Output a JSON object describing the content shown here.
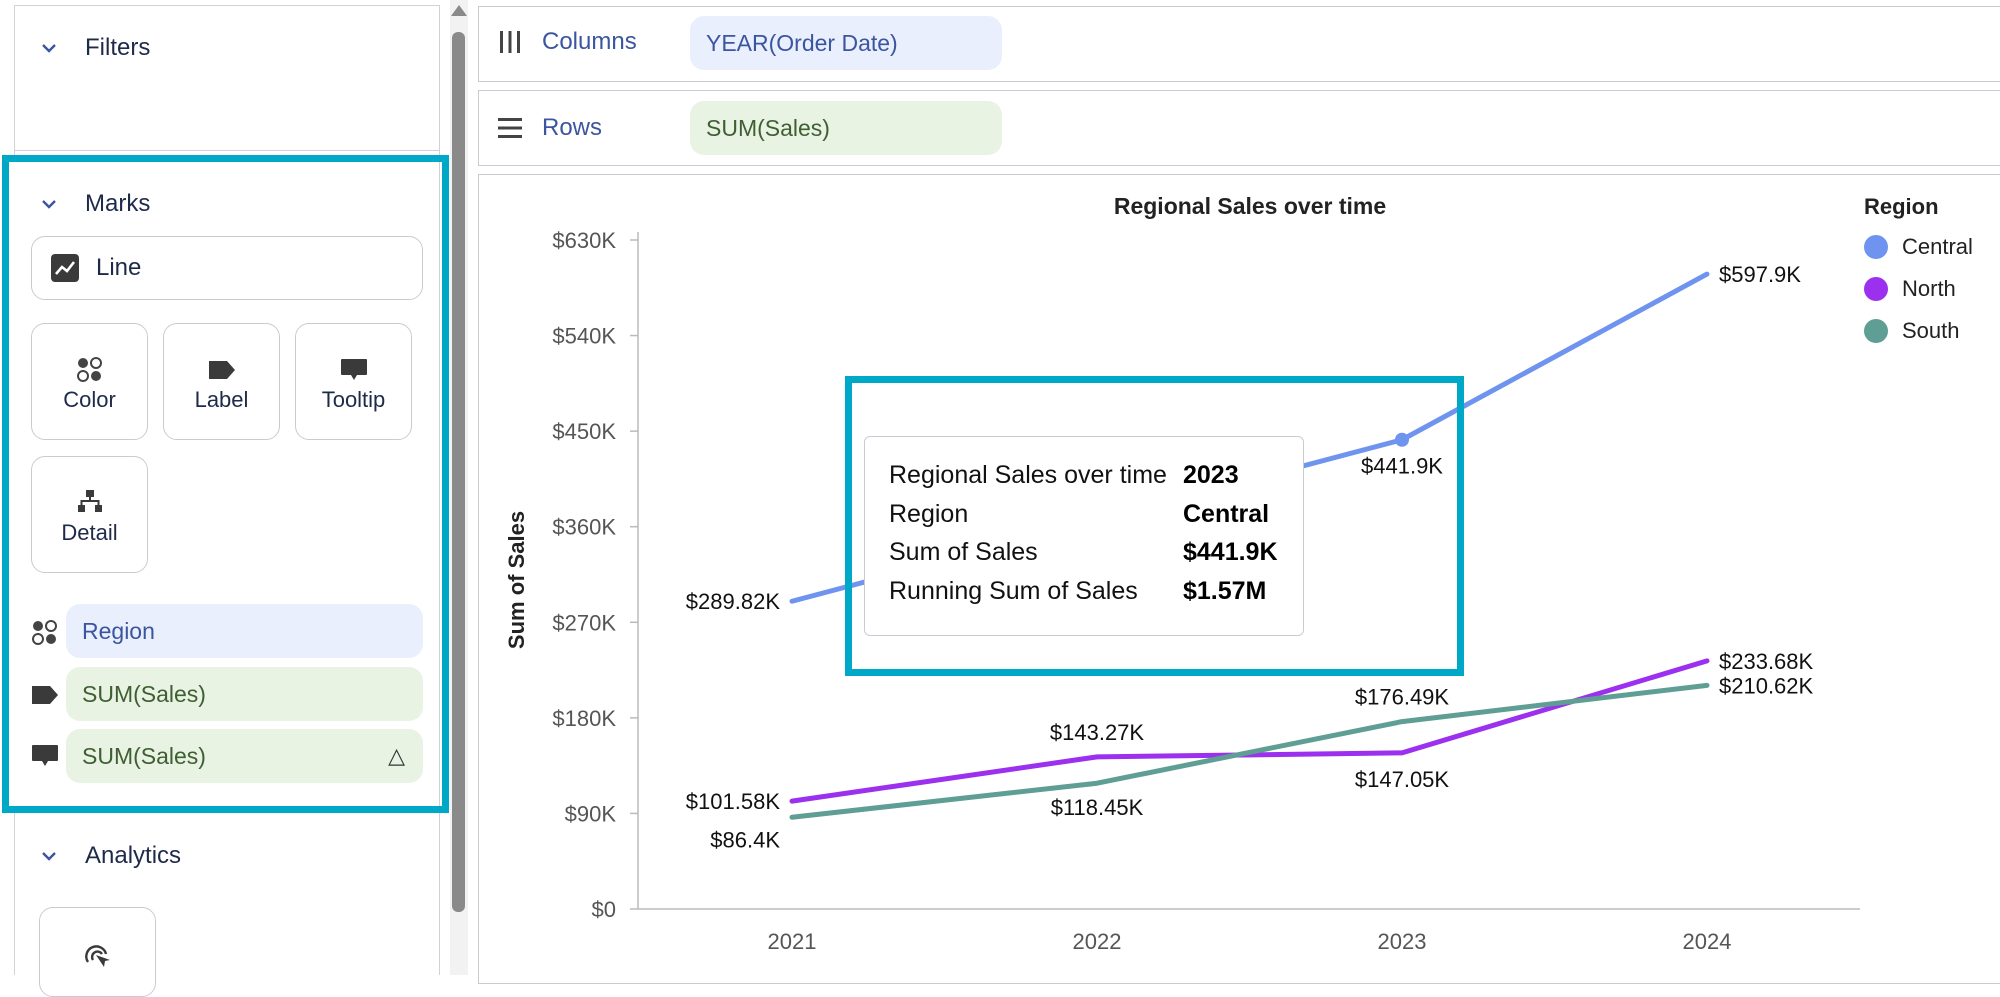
{
  "left_panel": {
    "filters_title": "Filters",
    "marks_title": "Marks",
    "mark_type": "Line",
    "cards": [
      {
        "label": "Color",
        "icon": "color-dots-icon"
      },
      {
        "label": "Label",
        "icon": "label-tag-icon"
      },
      {
        "label": "Tooltip",
        "icon": "tooltip-bubble-icon"
      },
      {
        "label": "Detail",
        "icon": "detail-hierarchy-icon"
      }
    ],
    "mark_fields": [
      {
        "icon": "color-dots-icon",
        "label": "Region"
      },
      {
        "icon": "label-tag-icon",
        "label": "SUM(Sales)"
      },
      {
        "icon": "tooltip-bubble-icon",
        "label": "SUM(Sales)",
        "trailing": "△"
      }
    ],
    "analytics_title": "Analytics"
  },
  "shelves": {
    "columns_label": "Columns",
    "columns_pill": "YEAR(Order Date)",
    "rows_label": "Rows",
    "rows_pill": "SUM(Sales)"
  },
  "tooltip": {
    "rows": [
      {
        "key": "Regional Sales over time",
        "value": "2023"
      },
      {
        "key": "Region",
        "value": "Central"
      },
      {
        "key": "Sum of Sales",
        "value": "$441.9K"
      },
      {
        "key": "Running Sum of Sales",
        "value": "$1.57M"
      }
    ]
  },
  "colors": {
    "highlight": "#00a8c8",
    "central": "#6f94ef",
    "north": "#9b30ef",
    "south": "#5f9e94"
  },
  "chart_data": {
    "type": "line",
    "title": "Regional Sales over time",
    "xlabel": "",
    "ylabel": "Sum of Sales",
    "categories": [
      "2021",
      "2022",
      "2023",
      "2024"
    ],
    "y_ticks": [
      "$0",
      "$90K",
      "$180K",
      "$270K",
      "$360K",
      "$450K",
      "$540K",
      "$630K"
    ],
    "ylim": [
      0,
      630000
    ],
    "legend_title": "Region",
    "legend_position": "right",
    "grid": false,
    "series": [
      {
        "name": "Central",
        "values": [
          289820,
          null,
          441900,
          597900
        ],
        "labels": [
          "$289.82K",
          "",
          "$441.9K",
          "$597.9K"
        ]
      },
      {
        "name": "North",
        "values": [
          101580,
          143270,
          147050,
          233680
        ],
        "labels": [
          "$101.58K",
          "$143.27K",
          "$147.05K",
          "$233.68K"
        ]
      },
      {
        "name": "South",
        "values": [
          86400,
          118450,
          176490,
          210620
        ],
        "labels": [
          "$86.4K",
          "$118.45K",
          "$176.49K",
          "$210.62K"
        ]
      }
    ]
  }
}
